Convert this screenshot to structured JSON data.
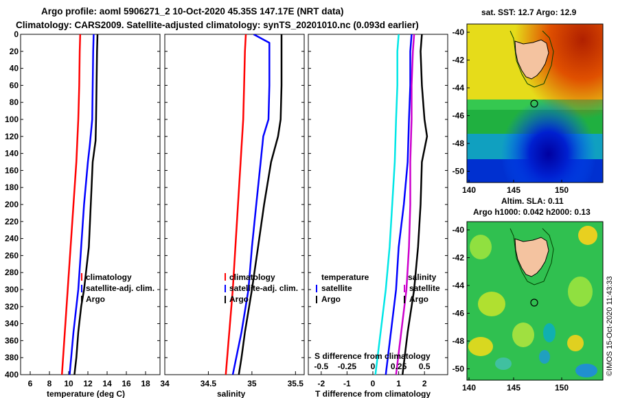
{
  "title_line1": "Argo profile: aoml 5906271_2 10-Oct-2020 45.35S 147.17E (NRT data)",
  "title_line2": "Climatology: CARS2009. Satellite-adjusted climatology: synTS_20201010.nc (0.093d earlier)",
  "imos_stamp": "©IMOS 15-Oct-2020 11:43:33",
  "chart_data": [
    {
      "id": "temperature",
      "type": "line",
      "xlabel": "temperature (deg C)",
      "xlim": [
        5,
        19.5
      ],
      "xticks": [
        6,
        8,
        10,
        12,
        14,
        16,
        18
      ],
      "ylim": [
        0,
        400
      ],
      "yticks": [
        0,
        20,
        40,
        60,
        80,
        100,
        120,
        140,
        160,
        180,
        200,
        220,
        240,
        260,
        280,
        300,
        320,
        340,
        360,
        380,
        400
      ],
      "legend": [
        "climatology",
        "satellite-adj. clim.",
        "Argo"
      ],
      "series": [
        {
          "name": "climatology",
          "color": "#ff0000",
          "depth": [
            0,
            20,
            60,
            100,
            150,
            200,
            250,
            300,
            350,
            400
          ],
          "values": [
            11.2,
            11.15,
            11.1,
            11.0,
            10.8,
            10.5,
            10.2,
            9.9,
            9.6,
            9.3
          ]
        },
        {
          "name": "satellite-adj. clim.",
          "color": "#0000ff",
          "depth": [
            0,
            20,
            60,
            100,
            130,
            150,
            200,
            250,
            300,
            350,
            400
          ],
          "values": [
            12.6,
            12.55,
            12.5,
            12.45,
            12.2,
            12.0,
            11.6,
            11.3,
            11.0,
            10.5,
            10.1
          ]
        },
        {
          "name": "Argo",
          "color": "#000000",
          "depth": [
            0,
            20,
            60,
            100,
            125,
            150,
            200,
            250,
            300,
            320,
            350,
            380,
            400
          ],
          "values": [
            13.0,
            12.95,
            12.9,
            12.85,
            12.8,
            12.5,
            12.3,
            12.1,
            11.6,
            11.3,
            11.0,
            10.8,
            10.6
          ]
        }
      ]
    },
    {
      "id": "salinity",
      "type": "line",
      "xlabel": "salinity",
      "xlim": [
        34,
        35.6
      ],
      "xticks": [
        34,
        34.5,
        35,
        35.5
      ],
      "ylim": [
        0,
        400
      ],
      "legend": [
        "climatology",
        "satellite-adj. clim.",
        "Argo"
      ],
      "series": [
        {
          "name": "climatology",
          "color": "#ff0000",
          "depth": [
            0,
            20,
            60,
            100,
            150,
            200,
            250,
            300,
            350,
            400
          ],
          "values": [
            34.93,
            34.92,
            34.91,
            34.9,
            34.87,
            34.84,
            34.81,
            34.78,
            34.74,
            34.7
          ]
        },
        {
          "name": "satellite-adj. clim.",
          "color": "#0000ff",
          "depth": [
            0,
            10,
            20,
            60,
            100,
            120,
            150,
            200,
            250,
            300,
            350,
            400
          ],
          "values": [
            35.02,
            35.2,
            35.2,
            35.2,
            35.19,
            35.13,
            35.1,
            35.05,
            35.0,
            34.96,
            34.88,
            34.78
          ]
        },
        {
          "name": "Argo",
          "color": "#000000",
          "depth": [
            0,
            20,
            60,
            100,
            120,
            150,
            200,
            250,
            300,
            350,
            380,
            400
          ],
          "values": [
            35.34,
            35.34,
            35.34,
            35.33,
            35.3,
            35.22,
            35.14,
            35.07,
            35.0,
            34.92,
            34.88,
            34.85
          ]
        }
      ]
    },
    {
      "id": "difference",
      "type": "line",
      "xlabel": "T difference from climatology",
      "top_label": "S difference from climatology",
      "xlim": [
        -2.5,
        2.9
      ],
      "xticks": [
        -2,
        -1,
        0,
        1,
        2
      ],
      "top_xticks": [
        "-0.5",
        "-0.25",
        "0",
        "0.25",
        "0.5"
      ],
      "ylim": [
        0,
        400
      ],
      "legend_headers": [
        "temperature",
        "salinity"
      ],
      "legend_rows": [
        "satellite",
        "Argo"
      ],
      "series": [
        {
          "name": "temperature satellite",
          "color": "#00e6e6",
          "depth": [
            0,
            20,
            60,
            100,
            150,
            200,
            250,
            300,
            350,
            400
          ],
          "values": [
            1.0,
            0.95,
            0.95,
            0.9,
            0.85,
            0.75,
            0.65,
            0.5,
            0.3,
            0.1
          ]
        },
        {
          "name": "temperature Argo",
          "color": "#0000ff",
          "depth": [
            0,
            20,
            60,
            100,
            150,
            200,
            250,
            300,
            350,
            400
          ],
          "values": [
            1.5,
            1.45,
            1.45,
            1.4,
            1.35,
            1.2,
            1.0,
            0.9,
            0.7,
            0.5
          ]
        },
        {
          "name": "salinity satellite",
          "color": "#cc00cc",
          "depth": [
            0,
            20,
            60,
            100,
            150,
            200,
            250,
            300,
            350,
            400
          ],
          "values": [
            1.6,
            1.55,
            1.5,
            1.5,
            1.45,
            1.45,
            1.4,
            1.3,
            1.1,
            0.9
          ]
        },
        {
          "name": "salinity Argo",
          "color": "#000000",
          "depth": [
            0,
            20,
            60,
            100,
            120,
            150,
            200,
            250,
            300,
            350,
            400
          ],
          "values": [
            1.9,
            1.85,
            1.9,
            2.0,
            2.1,
            1.9,
            1.85,
            1.75,
            1.6,
            1.35,
            1.15
          ]
        }
      ]
    }
  ],
  "maps": [
    {
      "id": "sst-map",
      "title": "sat. SST: 12.7 Argo: 12.9",
      "xticks": [
        "140",
        "145",
        "150"
      ],
      "yticks": [
        "-40",
        "-42",
        "-44",
        "-46",
        "-48",
        "-50"
      ]
    },
    {
      "id": "sla-map",
      "title_line1": "Altim. SLA: 0.11",
      "title_line2": "Argo h1000: 0.042 h2000: 0.13",
      "xticks": [
        "140",
        "145",
        "150"
      ],
      "yticks": [
        "-40",
        "-42",
        "-44",
        "-46",
        "-48",
        "-50"
      ]
    }
  ]
}
